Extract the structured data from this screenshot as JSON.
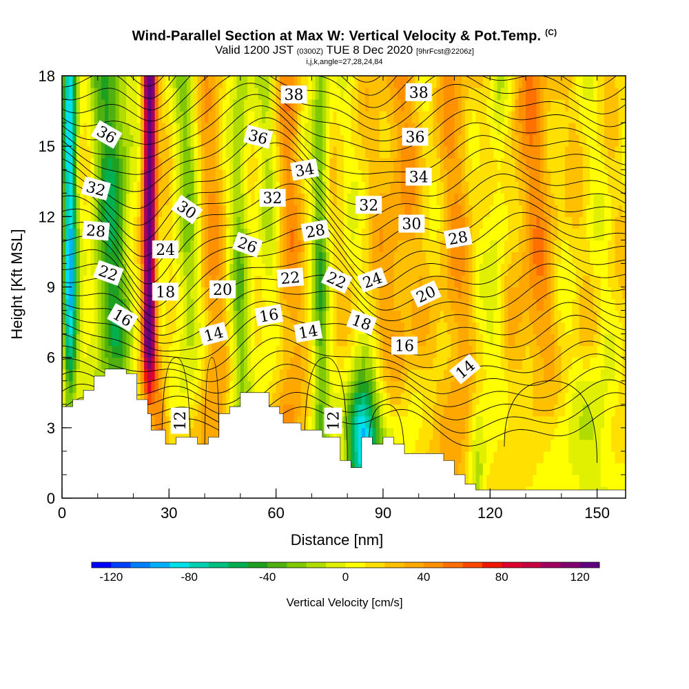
{
  "title": {
    "main": "Wind-Parallel Section at Max W: Vertical Velocity & Pot.Temp.",
    "mark": "(C)",
    "valid_prefix": "Valid 1200 JST",
    "valid_z": "(0300Z)",
    "valid_date": "TUE 8 Dec 2020",
    "fcst": "[9hrFcst@2206z]",
    "params": "i,j,k,angle=27,28,24,84"
  },
  "chart_data": {
    "type": "heatmap",
    "xlabel": "Distance [nm]",
    "ylabel": "Height [Kft MSL]",
    "xlim": [
      0,
      158
    ],
    "ylim": [
      0,
      18
    ],
    "x_ticks": [
      0,
      30,
      60,
      90,
      120,
      150
    ],
    "y_ticks": [
      0,
      3,
      6,
      9,
      12,
      15,
      18
    ],
    "colorbar": {
      "label": "Vertical Velocity [cm/s]",
      "tick_labels": [
        -120,
        -80,
        -40,
        0,
        40,
        80,
        120
      ],
      "min": -130,
      "max": 130,
      "step": 10,
      "colors": [
        "#0000ff",
        "#0040ff",
        "#0080ff",
        "#00b0ff",
        "#00e0e8",
        "#00d0b0",
        "#00c080",
        "#00b050",
        "#20a020",
        "#50b010",
        "#80c800",
        "#b0dc00",
        "#e0f000",
        "#ffff00",
        "#ffe000",
        "#ffc000",
        "#ffa800",
        "#ff9000",
        "#ff7000",
        "#ff4800",
        "#f01800",
        "#e00030",
        "#c80040",
        "#a00060",
        "#800070",
        "#600080"
      ]
    },
    "theta_label_values": [
      12,
      14,
      16,
      18,
      20,
      22,
      24,
      26,
      28,
      30,
      32,
      34,
      36,
      38
    ],
    "contour_labels": [
      {
        "text": "36",
        "x": 12.5,
        "y": 15.5,
        "rot": 30
      },
      {
        "text": "32",
        "x": 9.5,
        "y": 13.2,
        "rot": 15
      },
      {
        "text": "28",
        "x": 9.5,
        "y": 11.4,
        "rot": 5
      },
      {
        "text": "22",
        "x": 13,
        "y": 9.6,
        "rot": 20
      },
      {
        "text": "16",
        "x": 17,
        "y": 7.7,
        "rot": 30
      },
      {
        "text": "30",
        "x": 35,
        "y": 12.3,
        "rot": 35
      },
      {
        "text": "24",
        "x": 29,
        "y": 10.6,
        "rot": 0
      },
      {
        "text": "18",
        "x": 29,
        "y": 8.8,
        "rot": 0
      },
      {
        "text": "20",
        "x": 45,
        "y": 8.9,
        "rot": 0
      },
      {
        "text": "14",
        "x": 42.5,
        "y": 7.0,
        "rot": -15
      },
      {
        "text": "12",
        "x": 33,
        "y": 3.3,
        "rot": -90
      },
      {
        "text": "36",
        "x": 55,
        "y": 15.4,
        "rot": 15
      },
      {
        "text": "26",
        "x": 52,
        "y": 10.8,
        "rot": 20
      },
      {
        "text": "32",
        "x": 59,
        "y": 12.8,
        "rot": 0
      },
      {
        "text": "16",
        "x": 58,
        "y": 7.8,
        "rot": -10
      },
      {
        "text": "22",
        "x": 64,
        "y": 9.4,
        "rot": -5
      },
      {
        "text": "38",
        "x": 65,
        "y": 17.2,
        "rot": 0
      },
      {
        "text": "34",
        "x": 68,
        "y": 14.0,
        "rot": -10
      },
      {
        "text": "28",
        "x": 71,
        "y": 11.4,
        "rot": -10
      },
      {
        "text": "14",
        "x": 69,
        "y": 7.1,
        "rot": -10
      },
      {
        "text": "22",
        "x": 77,
        "y": 9.3,
        "rot": 25
      },
      {
        "text": "12",
        "x": 76,
        "y": 3.3,
        "rot": -90
      },
      {
        "text": "32",
        "x": 86,
        "y": 12.5,
        "rot": 0
      },
      {
        "text": "24",
        "x": 87,
        "y": 9.3,
        "rot": -20
      },
      {
        "text": "18",
        "x": 84,
        "y": 7.5,
        "rot": 20
      },
      {
        "text": "38",
        "x": 100,
        "y": 17.3,
        "rot": 0
      },
      {
        "text": "36",
        "x": 99,
        "y": 15.4,
        "rot": 0
      },
      {
        "text": "34",
        "x": 100,
        "y": 13.7,
        "rot": 0
      },
      {
        "text": "30",
        "x": 98,
        "y": 11.7,
        "rot": 0
      },
      {
        "text": "20",
        "x": 102,
        "y": 8.7,
        "rot": -25
      },
      {
        "text": "16",
        "x": 96,
        "y": 6.5,
        "rot": 0
      },
      {
        "text": "28",
        "x": 111,
        "y": 11.1,
        "rot": -10
      },
      {
        "text": "14",
        "x": 113,
        "y": 5.5,
        "rot": -40
      }
    ],
    "terrain_profile": [
      {
        "x": 0,
        "y": 3.9
      },
      {
        "x": 3,
        "y": 3.9
      },
      {
        "x": 3,
        "y": 4.2
      },
      {
        "x": 6,
        "y": 4.2
      },
      {
        "x": 6,
        "y": 4.6
      },
      {
        "x": 9,
        "y": 4.6
      },
      {
        "x": 9,
        "y": 5.2
      },
      {
        "x": 12,
        "y": 5.2
      },
      {
        "x": 12,
        "y": 5.5
      },
      {
        "x": 18,
        "y": 5.5
      },
      {
        "x": 18,
        "y": 5.3
      },
      {
        "x": 21,
        "y": 5.3
      },
      {
        "x": 21,
        "y": 4.2
      },
      {
        "x": 24,
        "y": 4.2
      },
      {
        "x": 24,
        "y": 3.6
      },
      {
        "x": 25,
        "y": 3.6
      },
      {
        "x": 25,
        "y": 2.9
      },
      {
        "x": 29,
        "y": 2.9
      },
      {
        "x": 29,
        "y": 2.3
      },
      {
        "x": 32,
        "y": 2.3
      },
      {
        "x": 32,
        "y": 2.6
      },
      {
        "x": 38,
        "y": 2.6
      },
      {
        "x": 38,
        "y": 2.3
      },
      {
        "x": 41,
        "y": 2.3
      },
      {
        "x": 41,
        "y": 2.6
      },
      {
        "x": 44,
        "y": 2.6
      },
      {
        "x": 44,
        "y": 3.6
      },
      {
        "x": 47,
        "y": 3.6
      },
      {
        "x": 47,
        "y": 3.9
      },
      {
        "x": 50,
        "y": 3.9
      },
      {
        "x": 50,
        "y": 4.5
      },
      {
        "x": 58,
        "y": 4.5
      },
      {
        "x": 58,
        "y": 3.9
      },
      {
        "x": 61,
        "y": 3.9
      },
      {
        "x": 61,
        "y": 3.6
      },
      {
        "x": 62,
        "y": 3.6
      },
      {
        "x": 62,
        "y": 3.2
      },
      {
        "x": 67,
        "y": 3.2
      },
      {
        "x": 67,
        "y": 2.9
      },
      {
        "x": 73,
        "y": 2.9
      },
      {
        "x": 73,
        "y": 2.6
      },
      {
        "x": 78,
        "y": 2.6
      },
      {
        "x": 78,
        "y": 1.6
      },
      {
        "x": 81,
        "y": 1.6
      },
      {
        "x": 81,
        "y": 1.3
      },
      {
        "x": 84,
        "y": 1.3
      },
      {
        "x": 84,
        "y": 2.6
      },
      {
        "x": 87,
        "y": 2.6
      },
      {
        "x": 87,
        "y": 2.3
      },
      {
        "x": 90,
        "y": 2.3
      },
      {
        "x": 90,
        "y": 2.6
      },
      {
        "x": 93,
        "y": 2.6
      },
      {
        "x": 93,
        "y": 2.3
      },
      {
        "x": 96,
        "y": 2.3
      },
      {
        "x": 96,
        "y": 1.9
      },
      {
        "x": 107,
        "y": 1.9
      },
      {
        "x": 107,
        "y": 1.6
      },
      {
        "x": 110,
        "y": 1.6
      },
      {
        "x": 110,
        "y": 1.0
      },
      {
        "x": 113,
        "y": 1.0
      },
      {
        "x": 113,
        "y": 0.6
      },
      {
        "x": 116,
        "y": 0.6
      },
      {
        "x": 116,
        "y": 0.35
      },
      {
        "x": 158,
        "y": 0.35
      }
    ]
  }
}
